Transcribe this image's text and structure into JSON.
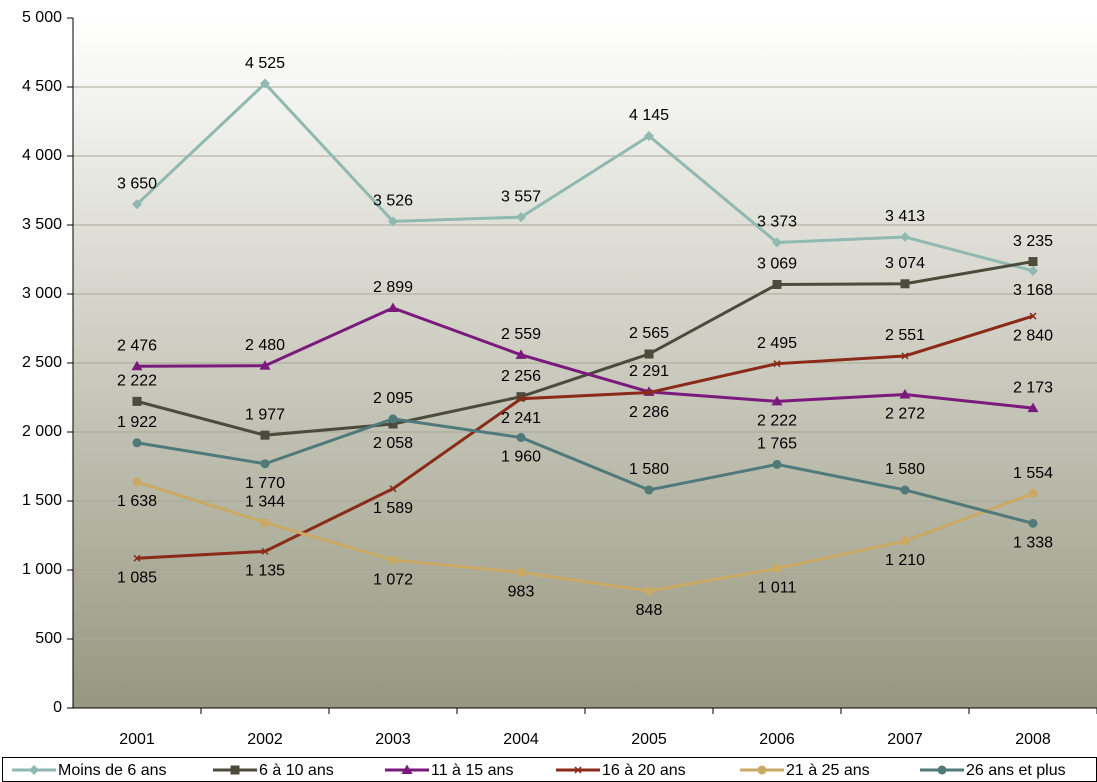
{
  "chart_data": {
    "type": "line",
    "categories": [
      "2001",
      "2002",
      "2003",
      "2004",
      "2005",
      "2006",
      "2007",
      "2008"
    ],
    "ylim": [
      0,
      5000
    ],
    "yticks": [
      0,
      500,
      {
        "value": 1000,
        "label": "1 000"
      },
      {
        "value": 1500,
        "label": "1 500"
      },
      {
        "value": 2000,
        "label": "2 000"
      },
      {
        "value": 2500,
        "label": "2 500"
      },
      {
        "value": 3000,
        "label": "3 000"
      },
      {
        "value": 3500,
        "label": "3 500"
      },
      {
        "value": 4000,
        "label": "4 000"
      },
      {
        "value": 4500,
        "label": "4 500"
      },
      {
        "value": 5000,
        "label": "5 000"
      }
    ],
    "grid": true,
    "legend": "bottom",
    "series": [
      {
        "name": "Moins de 6 ans",
        "color": "#8fb9b1",
        "marker": "diamond",
        "values": [
          3650,
          4525,
          3526,
          3557,
          4145,
          3373,
          3413,
          3168
        ],
        "value_labels": [
          "3 650",
          "4 525",
          "3 526",
          "3 557",
          "4 145",
          "3 373",
          "3 413",
          "3 168"
        ]
      },
      {
        "name": "6 à 10 ans",
        "color": "#4b4b3c",
        "marker": "square",
        "values": [
          2222,
          1977,
          2058,
          2256,
          2565,
          3069,
          3074,
          3235
        ],
        "value_labels": [
          "2 222",
          "1 977",
          "2 058",
          "2 256",
          "2 565",
          "3 069",
          "3 074",
          "3 235"
        ]
      },
      {
        "name": "11 à 15 ans",
        "color": "#7b1a7d",
        "marker": "triangle",
        "values": [
          2476,
          2480,
          2899,
          2559,
          2291,
          2222,
          2272,
          2173
        ],
        "value_labels": [
          "2 476",
          "2 480",
          "2 899",
          "2 559",
          "2 291",
          "2 222",
          "2 272",
          "2 173"
        ]
      },
      {
        "name": "16 à 20 ans",
        "color": "#8a2a18",
        "marker": "cross",
        "values": [
          1085,
          1135,
          1589,
          2241,
          2286,
          2495,
          2551,
          2840
        ],
        "value_labels": [
          "1 085",
          "1 135",
          "1 589",
          "2 241",
          "2 286",
          "2 495",
          "2 551",
          "2 840"
        ]
      },
      {
        "name": "21 à 25 ans",
        "color": "#c9a963",
        "marker": "circle",
        "values": [
          1638,
          1344,
          1072,
          983,
          848,
          1011,
          1210,
          1554
        ],
        "value_labels": [
          "1 638",
          "1 344",
          "1 072",
          "983",
          "848",
          "1 011",
          "1 210",
          "1 554"
        ]
      },
      {
        "name": "26 ans et plus",
        "color": "#50797a",
        "marker": "circle",
        "values": [
          1922,
          1770,
          2095,
          1960,
          1580,
          1765,
          1580,
          1338
        ],
        "value_labels": [
          "1 922",
          "1 770",
          "2 095",
          "1 960",
          "1 580",
          "1 765",
          "1 580",
          "1 338"
        ]
      }
    ]
  }
}
